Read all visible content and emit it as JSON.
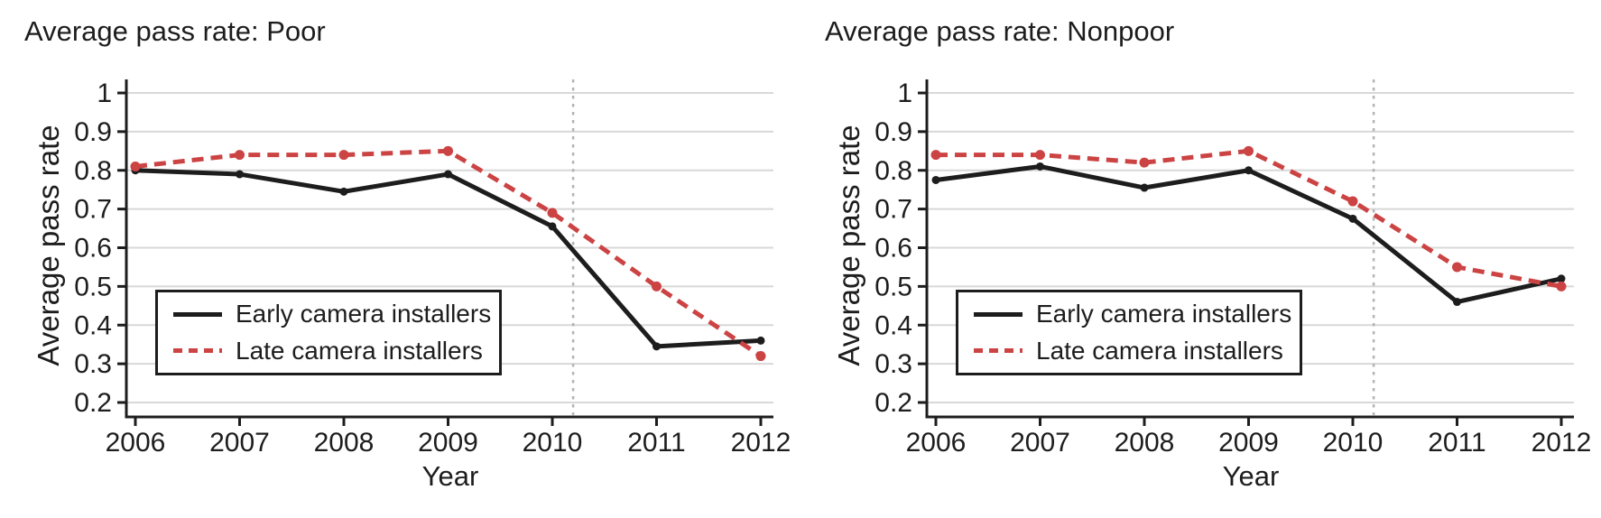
{
  "page": {
    "background": "#ffffff"
  },
  "colors": {
    "axis": "#1d1d1d",
    "text": "#1d1d1d",
    "grid": "#d8d8d8",
    "reference_line": "#b3b3b3",
    "early_series": "#1d1d1d",
    "late_series": "#cc4343",
    "legend_background": "#ffffff"
  },
  "chart_data": [
    {
      "type": "line",
      "title": "Average pass rate: Poor",
      "xlabel": "Year",
      "ylabel": "Average pass rate",
      "x": [
        2006,
        2007,
        2008,
        2009,
        2010,
        2011,
        2012
      ],
      "x_tick_labels": [
        "2006",
        "2007",
        "2008",
        "2009",
        "2010",
        "2011",
        "2012"
      ],
      "y_ticks": [
        1,
        0.9,
        0.8,
        0.7,
        0.6,
        0.5,
        0.4,
        0.3,
        0.2
      ],
      "y_tick_labels": [
        "1",
        "0.9",
        "0.8",
        "0.7",
        "0.6",
        "0.5",
        "0.4",
        "0.3",
        "0.2"
      ],
      "ylim": [
        0.2,
        1.0
      ],
      "grid": true,
      "legend_position": "lower-left",
      "reference_line_x": 2010.2,
      "series": [
        {
          "name": "Early camera installers",
          "style": "solid",
          "color": "#1d1d1d",
          "values": [
            0.8,
            0.79,
            0.745,
            0.79,
            0.655,
            0.345,
            0.36
          ]
        },
        {
          "name": "Late camera installers",
          "style": "dashed",
          "color": "#cc4343",
          "values": [
            0.81,
            0.84,
            0.84,
            0.85,
            0.69,
            0.5,
            0.32
          ]
        }
      ]
    },
    {
      "type": "line",
      "title": "Average pass rate: Nonpoor",
      "xlabel": "Year",
      "ylabel": "Average pass rate",
      "x": [
        2006,
        2007,
        2008,
        2009,
        2010,
        2011,
        2012
      ],
      "x_tick_labels": [
        "2006",
        "2007",
        "2008",
        "2009",
        "2010",
        "2011",
        "2012"
      ],
      "y_ticks": [
        1,
        0.9,
        0.8,
        0.7,
        0.6,
        0.5,
        0.4,
        0.3,
        0.2
      ],
      "y_tick_labels": [
        "1",
        "0.9",
        "0.8",
        "0.7",
        "0.6",
        "0.5",
        "0.4",
        "0.3",
        "0.2"
      ],
      "ylim": [
        0.2,
        1.0
      ],
      "grid": true,
      "legend_position": "lower-left",
      "reference_line_x": 2010.2,
      "series": [
        {
          "name": "Early camera installers",
          "style": "solid",
          "color": "#1d1d1d",
          "values": [
            0.775,
            0.81,
            0.755,
            0.8,
            0.675,
            0.46,
            0.52
          ]
        },
        {
          "name": "Late camera installers",
          "style": "dashed",
          "color": "#cc4343",
          "values": [
            0.84,
            0.84,
            0.82,
            0.85,
            0.72,
            0.55,
            0.5
          ]
        }
      ]
    }
  ]
}
